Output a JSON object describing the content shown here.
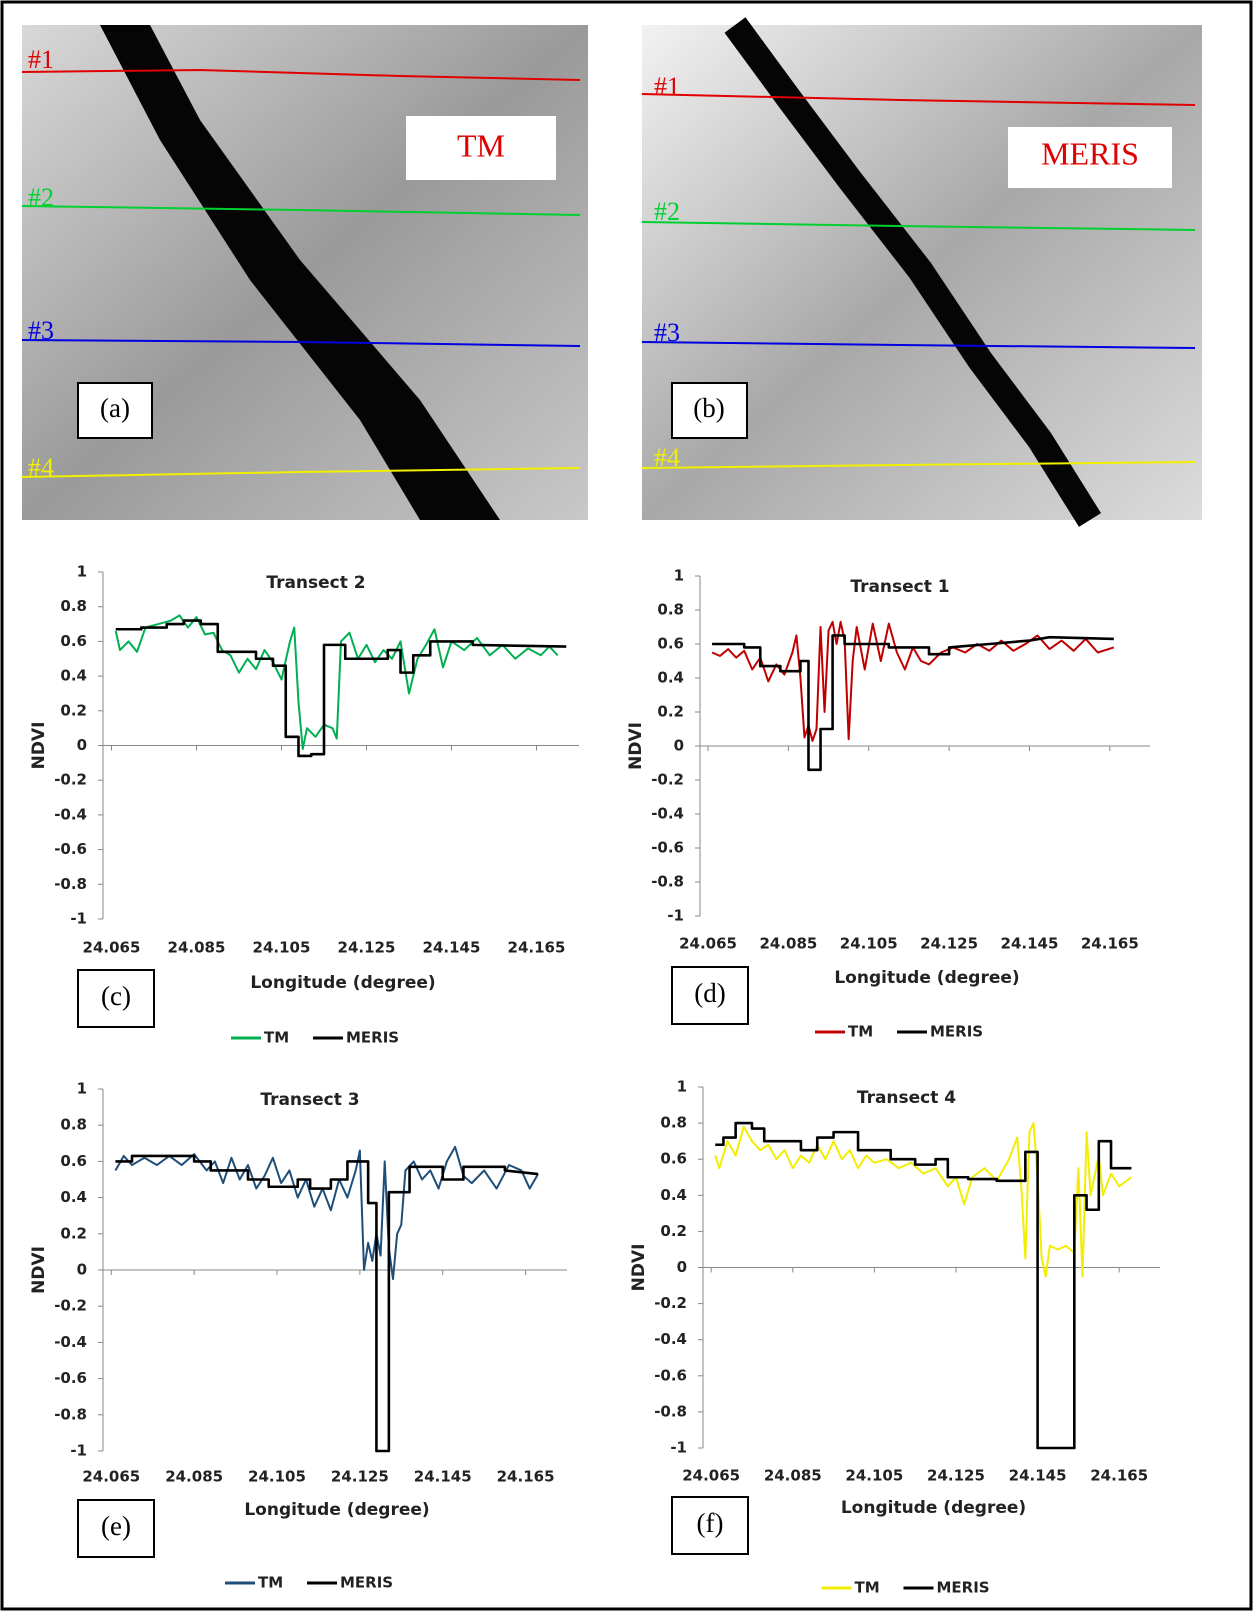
{
  "images": [
    {
      "label": "TM",
      "panel": "(a)",
      "transects": [
        "#1",
        "#2",
        "#3",
        "#4"
      ]
    },
    {
      "label": "MERIS",
      "panel": "(b)",
      "transects": [
        "#1",
        "#2",
        "#3",
        "#4"
      ]
    }
  ],
  "chart_data": [
    {
      "type": "line",
      "title": "Transect 2",
      "panel": "(c)",
      "x_label": "Longitude (degree)",
      "y_label": "NDVI",
      "xlim": [
        24.063,
        24.175
      ],
      "ylim": [
        -1,
        1
      ],
      "xticks": [
        24.065,
        24.085,
        24.105,
        24.125,
        24.145,
        24.165
      ],
      "yticks": [
        1,
        0.8,
        0.6,
        0.4,
        0.2,
        0,
        -0.2,
        -0.4,
        -0.6,
        -0.8,
        -1
      ],
      "series": [
        {
          "name": "TM",
          "color": "#00b050",
          "x": [
            24.066,
            24.067,
            24.069,
            24.071,
            24.073,
            24.076,
            24.079,
            24.081,
            24.083,
            24.085,
            24.087,
            24.089,
            24.091,
            24.093,
            24.095,
            24.097,
            24.099,
            24.101,
            24.103,
            24.105,
            24.107,
            24.108,
            24.109,
            24.11,
            24.111,
            24.113,
            24.115,
            24.117,
            24.118,
            24.119,
            24.121,
            24.123,
            24.125,
            24.127,
            24.129,
            24.131,
            24.133,
            24.135,
            24.137,
            24.139,
            24.141,
            24.143,
            24.145,
            24.148,
            24.151,
            24.154,
            24.157,
            24.16,
            24.163,
            24.166,
            24.168,
            24.17
          ],
          "values": [
            0.66,
            0.55,
            0.6,
            0.54,
            0.68,
            0.7,
            0.72,
            0.75,
            0.68,
            0.74,
            0.64,
            0.65,
            0.55,
            0.52,
            0.42,
            0.5,
            0.44,
            0.55,
            0.48,
            0.38,
            0.6,
            0.68,
            0.25,
            -0.02,
            0.1,
            0.05,
            0.12,
            0.1,
            0.04,
            0.6,
            0.65,
            0.5,
            0.58,
            0.48,
            0.55,
            0.5,
            0.6,
            0.3,
            0.5,
            0.58,
            0.67,
            0.45,
            0.6,
            0.55,
            0.62,
            0.52,
            0.58,
            0.5,
            0.56,
            0.52,
            0.57,
            0.52
          ]
        },
        {
          "name": "MERIS",
          "color": "#000000",
          "x": [
            24.066,
            24.072,
            24.072,
            24.078,
            24.078,
            24.082,
            24.082,
            24.086,
            24.086,
            24.09,
            24.09,
            24.099,
            24.099,
            24.103,
            24.103,
            24.106,
            24.106,
            24.109,
            24.109,
            24.112,
            24.112,
            24.115,
            24.115,
            24.12,
            24.12,
            24.13,
            24.13,
            24.133,
            24.133,
            24.136,
            24.136,
            24.14,
            24.14,
            24.15,
            24.15,
            24.172
          ],
          "values": [
            0.67,
            0.67,
            0.68,
            0.68,
            0.7,
            0.7,
            0.72,
            0.72,
            0.7,
            0.7,
            0.54,
            0.54,
            0.5,
            0.5,
            0.46,
            0.46,
            0.05,
            0.05,
            -0.06,
            -0.06,
            -0.05,
            -0.05,
            0.58,
            0.58,
            0.5,
            0.5,
            0.55,
            0.55,
            0.42,
            0.42,
            0.52,
            0.52,
            0.6,
            0.6,
            0.58,
            0.57
          ]
        }
      ]
    },
    {
      "type": "line",
      "title": "Transect 1",
      "panel": "(d)",
      "x_label": "Longitude (degree)",
      "y_label": "NDVI",
      "xlim": [
        24.063,
        24.175
      ],
      "ylim": [
        -1,
        1
      ],
      "xticks": [
        24.065,
        24.085,
        24.105,
        24.125,
        24.145,
        24.165
      ],
      "yticks": [
        1,
        0.8,
        0.6,
        0.4,
        0.2,
        0,
        -0.2,
        -0.4,
        -0.6,
        -0.8,
        -1
      ],
      "series": [
        {
          "name": "TM",
          "color": "#c00000",
          "x": [
            24.066,
            24.068,
            24.07,
            24.072,
            24.074,
            24.076,
            24.078,
            24.08,
            24.082,
            24.084,
            24.086,
            24.087,
            24.088,
            24.089,
            24.09,
            24.091,
            24.092,
            24.093,
            24.094,
            24.095,
            24.096,
            24.097,
            24.098,
            24.099,
            24.1,
            24.101,
            24.102,
            24.104,
            24.106,
            24.108,
            24.11,
            24.112,
            24.114,
            24.116,
            24.118,
            24.12,
            24.123,
            24.126,
            24.129,
            24.132,
            24.135,
            24.138,
            24.141,
            24.144,
            24.147,
            24.15,
            24.153,
            24.156,
            24.159,
            24.162,
            24.166
          ],
          "values": [
            0.55,
            0.53,
            0.57,
            0.52,
            0.56,
            0.45,
            0.52,
            0.38,
            0.48,
            0.42,
            0.55,
            0.65,
            0.4,
            0.05,
            0.12,
            0.03,
            0.1,
            0.7,
            0.2,
            0.68,
            0.73,
            0.6,
            0.73,
            0.62,
            0.04,
            0.5,
            0.7,
            0.45,
            0.72,
            0.5,
            0.72,
            0.55,
            0.45,
            0.58,
            0.5,
            0.48,
            0.55,
            0.58,
            0.55,
            0.6,
            0.56,
            0.62,
            0.56,
            0.6,
            0.65,
            0.57,
            0.62,
            0.56,
            0.63,
            0.55,
            0.58
          ]
        },
        {
          "name": "MERIS",
          "color": "#000000",
          "x": [
            24.066,
            24.074,
            24.074,
            24.078,
            24.078,
            24.083,
            24.083,
            24.088,
            24.088,
            24.09,
            24.09,
            24.093,
            24.093,
            24.096,
            24.096,
            24.099,
            24.099,
            24.11,
            24.11,
            24.12,
            24.12,
            24.125,
            24.125,
            24.135,
            24.145,
            24.15,
            24.166
          ],
          "values": [
            0.6,
            0.6,
            0.58,
            0.58,
            0.47,
            0.47,
            0.44,
            0.44,
            0.5,
            0.5,
            -0.14,
            -0.14,
            0.1,
            0.1,
            0.65,
            0.65,
            0.6,
            0.6,
            0.58,
            0.58,
            0.54,
            0.54,
            0.58,
            0.6,
            0.62,
            0.64,
            0.63
          ]
        }
      ]
    },
    {
      "type": "line",
      "title": "Transect 3",
      "panel": "(e)",
      "x_label": "Longitude (degree)",
      "y_label": "NDVI",
      "xlim": [
        24.063,
        24.175
      ],
      "ylim": [
        -1,
        1
      ],
      "xticks": [
        24.065,
        24.085,
        24.105,
        24.125,
        24.145,
        24.165
      ],
      "yticks": [
        1,
        0.8,
        0.6,
        0.4,
        0.2,
        0,
        -0.2,
        -0.4,
        -0.6,
        -0.8,
        -1
      ],
      "series": [
        {
          "name": "TM",
          "color": "#1f4e79",
          "x": [
            24.066,
            24.068,
            24.07,
            24.073,
            24.076,
            24.079,
            24.082,
            24.085,
            24.088,
            24.09,
            24.092,
            24.094,
            24.096,
            24.098,
            24.1,
            24.102,
            24.104,
            24.106,
            24.108,
            24.11,
            24.112,
            24.114,
            24.116,
            24.118,
            24.12,
            24.122,
            24.124,
            24.125,
            24.126,
            24.127,
            24.128,
            24.129,
            24.13,
            24.131,
            24.132,
            24.133,
            24.134,
            24.135,
            24.136,
            24.138,
            24.14,
            24.142,
            24.144,
            24.146,
            24.148,
            24.15,
            24.152,
            24.155,
            24.158,
            24.161,
            24.164,
            24.166,
            24.168
          ],
          "values": [
            0.55,
            0.63,
            0.58,
            0.62,
            0.58,
            0.63,
            0.58,
            0.64,
            0.55,
            0.6,
            0.48,
            0.62,
            0.5,
            0.58,
            0.45,
            0.52,
            0.62,
            0.48,
            0.55,
            0.4,
            0.5,
            0.35,
            0.45,
            0.33,
            0.5,
            0.4,
            0.55,
            0.66,
            0.0,
            0.15,
            0.05,
            0.2,
            0.08,
            0.6,
            0.12,
            -0.05,
            0.2,
            0.25,
            0.55,
            0.6,
            0.5,
            0.55,
            0.45,
            0.6,
            0.68,
            0.52,
            0.48,
            0.55,
            0.45,
            0.58,
            0.55,
            0.45,
            0.53
          ]
        },
        {
          "name": "MERIS",
          "color": "#000000",
          "x": [
            24.066,
            24.07,
            24.07,
            24.085,
            24.085,
            24.089,
            24.089,
            24.098,
            24.098,
            24.103,
            24.103,
            24.11,
            24.11,
            24.113,
            24.113,
            24.118,
            24.118,
            24.122,
            24.122,
            24.127,
            24.127,
            24.129,
            24.129,
            24.132,
            24.132,
            24.137,
            24.137,
            24.145,
            24.145,
            24.15,
            24.15,
            24.16,
            24.16,
            24.168
          ],
          "values": [
            0.6,
            0.6,
            0.63,
            0.63,
            0.6,
            0.6,
            0.55,
            0.55,
            0.5,
            0.5,
            0.46,
            0.46,
            0.5,
            0.5,
            0.45,
            0.45,
            0.5,
            0.5,
            0.6,
            0.6,
            0.37,
            0.37,
            -1,
            -1,
            0.43,
            0.43,
            0.57,
            0.57,
            0.5,
            0.5,
            0.57,
            0.57,
            0.55,
            0.53
          ]
        }
      ]
    },
    {
      "type": "line",
      "title": "Transect 4",
      "panel": "(f)",
      "x_label": "Longitude (degree)",
      "y_label": "NDVI",
      "xlim": [
        24.063,
        24.175
      ],
      "ylim": [
        -1,
        1
      ],
      "xticks": [
        24.065,
        24.085,
        24.105,
        24.125,
        24.145,
        24.165
      ],
      "yticks": [
        1,
        0.8,
        0.6,
        0.4,
        0.2,
        0,
        -0.2,
        -0.4,
        -0.6,
        -0.8,
        -1
      ],
      "series": [
        {
          "name": "TM",
          "color": "#f2ee00",
          "x": [
            24.066,
            24.067,
            24.069,
            24.071,
            24.073,
            24.075,
            24.077,
            24.079,
            24.081,
            24.083,
            24.085,
            24.087,
            24.089,
            24.091,
            24.093,
            24.095,
            24.097,
            24.099,
            24.101,
            24.103,
            24.105,
            24.108,
            24.111,
            24.114,
            24.117,
            24.12,
            24.123,
            24.125,
            24.127,
            24.129,
            24.132,
            24.135,
            24.138,
            24.14,
            24.141,
            24.142,
            24.143,
            24.144,
            24.145,
            24.146,
            24.147,
            24.148,
            24.15,
            24.152,
            24.154,
            24.155,
            24.156,
            24.157,
            24.158,
            24.16,
            24.161,
            24.163,
            24.165,
            24.168
          ],
          "values": [
            0.62,
            0.55,
            0.7,
            0.62,
            0.78,
            0.7,
            0.65,
            0.68,
            0.6,
            0.65,
            0.55,
            0.62,
            0.58,
            0.68,
            0.6,
            0.7,
            0.6,
            0.65,
            0.55,
            0.62,
            0.58,
            0.6,
            0.55,
            0.58,
            0.52,
            0.55,
            0.45,
            0.5,
            0.35,
            0.5,
            0.55,
            0.48,
            0.6,
            0.72,
            0.45,
            0.05,
            0.75,
            0.8,
            0.5,
            0.05,
            -0.05,
            0.12,
            0.1,
            0.12,
            0.08,
            0.55,
            -0.05,
            0.75,
            0.4,
            0.62,
            0.4,
            0.52,
            0.45,
            0.5
          ]
        },
        {
          "name": "MERIS",
          "color": "#000000",
          "x": [
            24.066,
            24.068,
            24.068,
            24.071,
            24.071,
            24.075,
            24.075,
            24.078,
            24.078,
            24.087,
            24.087,
            24.091,
            24.091,
            24.095,
            24.095,
            24.101,
            24.101,
            24.109,
            24.109,
            24.115,
            24.115,
            24.12,
            24.12,
            24.123,
            24.123,
            24.128,
            24.128,
            24.135,
            24.135,
            24.142,
            24.142,
            24.145,
            24.145,
            24.154,
            24.154,
            24.157,
            24.157,
            24.16,
            24.16,
            24.163,
            24.163,
            24.168
          ],
          "values": [
            0.68,
            0.68,
            0.72,
            0.72,
            0.8,
            0.8,
            0.77,
            0.77,
            0.7,
            0.7,
            0.65,
            0.65,
            0.72,
            0.72,
            0.75,
            0.75,
            0.65,
            0.65,
            0.6,
            0.6,
            0.57,
            0.57,
            0.6,
            0.6,
            0.5,
            0.5,
            0.49,
            0.49,
            0.48,
            0.48,
            0.64,
            0.64,
            -1,
            -1,
            0.4,
            0.4,
            0.32,
            0.32,
            0.7,
            0.7,
            0.55,
            0.55
          ]
        }
      ]
    }
  ]
}
